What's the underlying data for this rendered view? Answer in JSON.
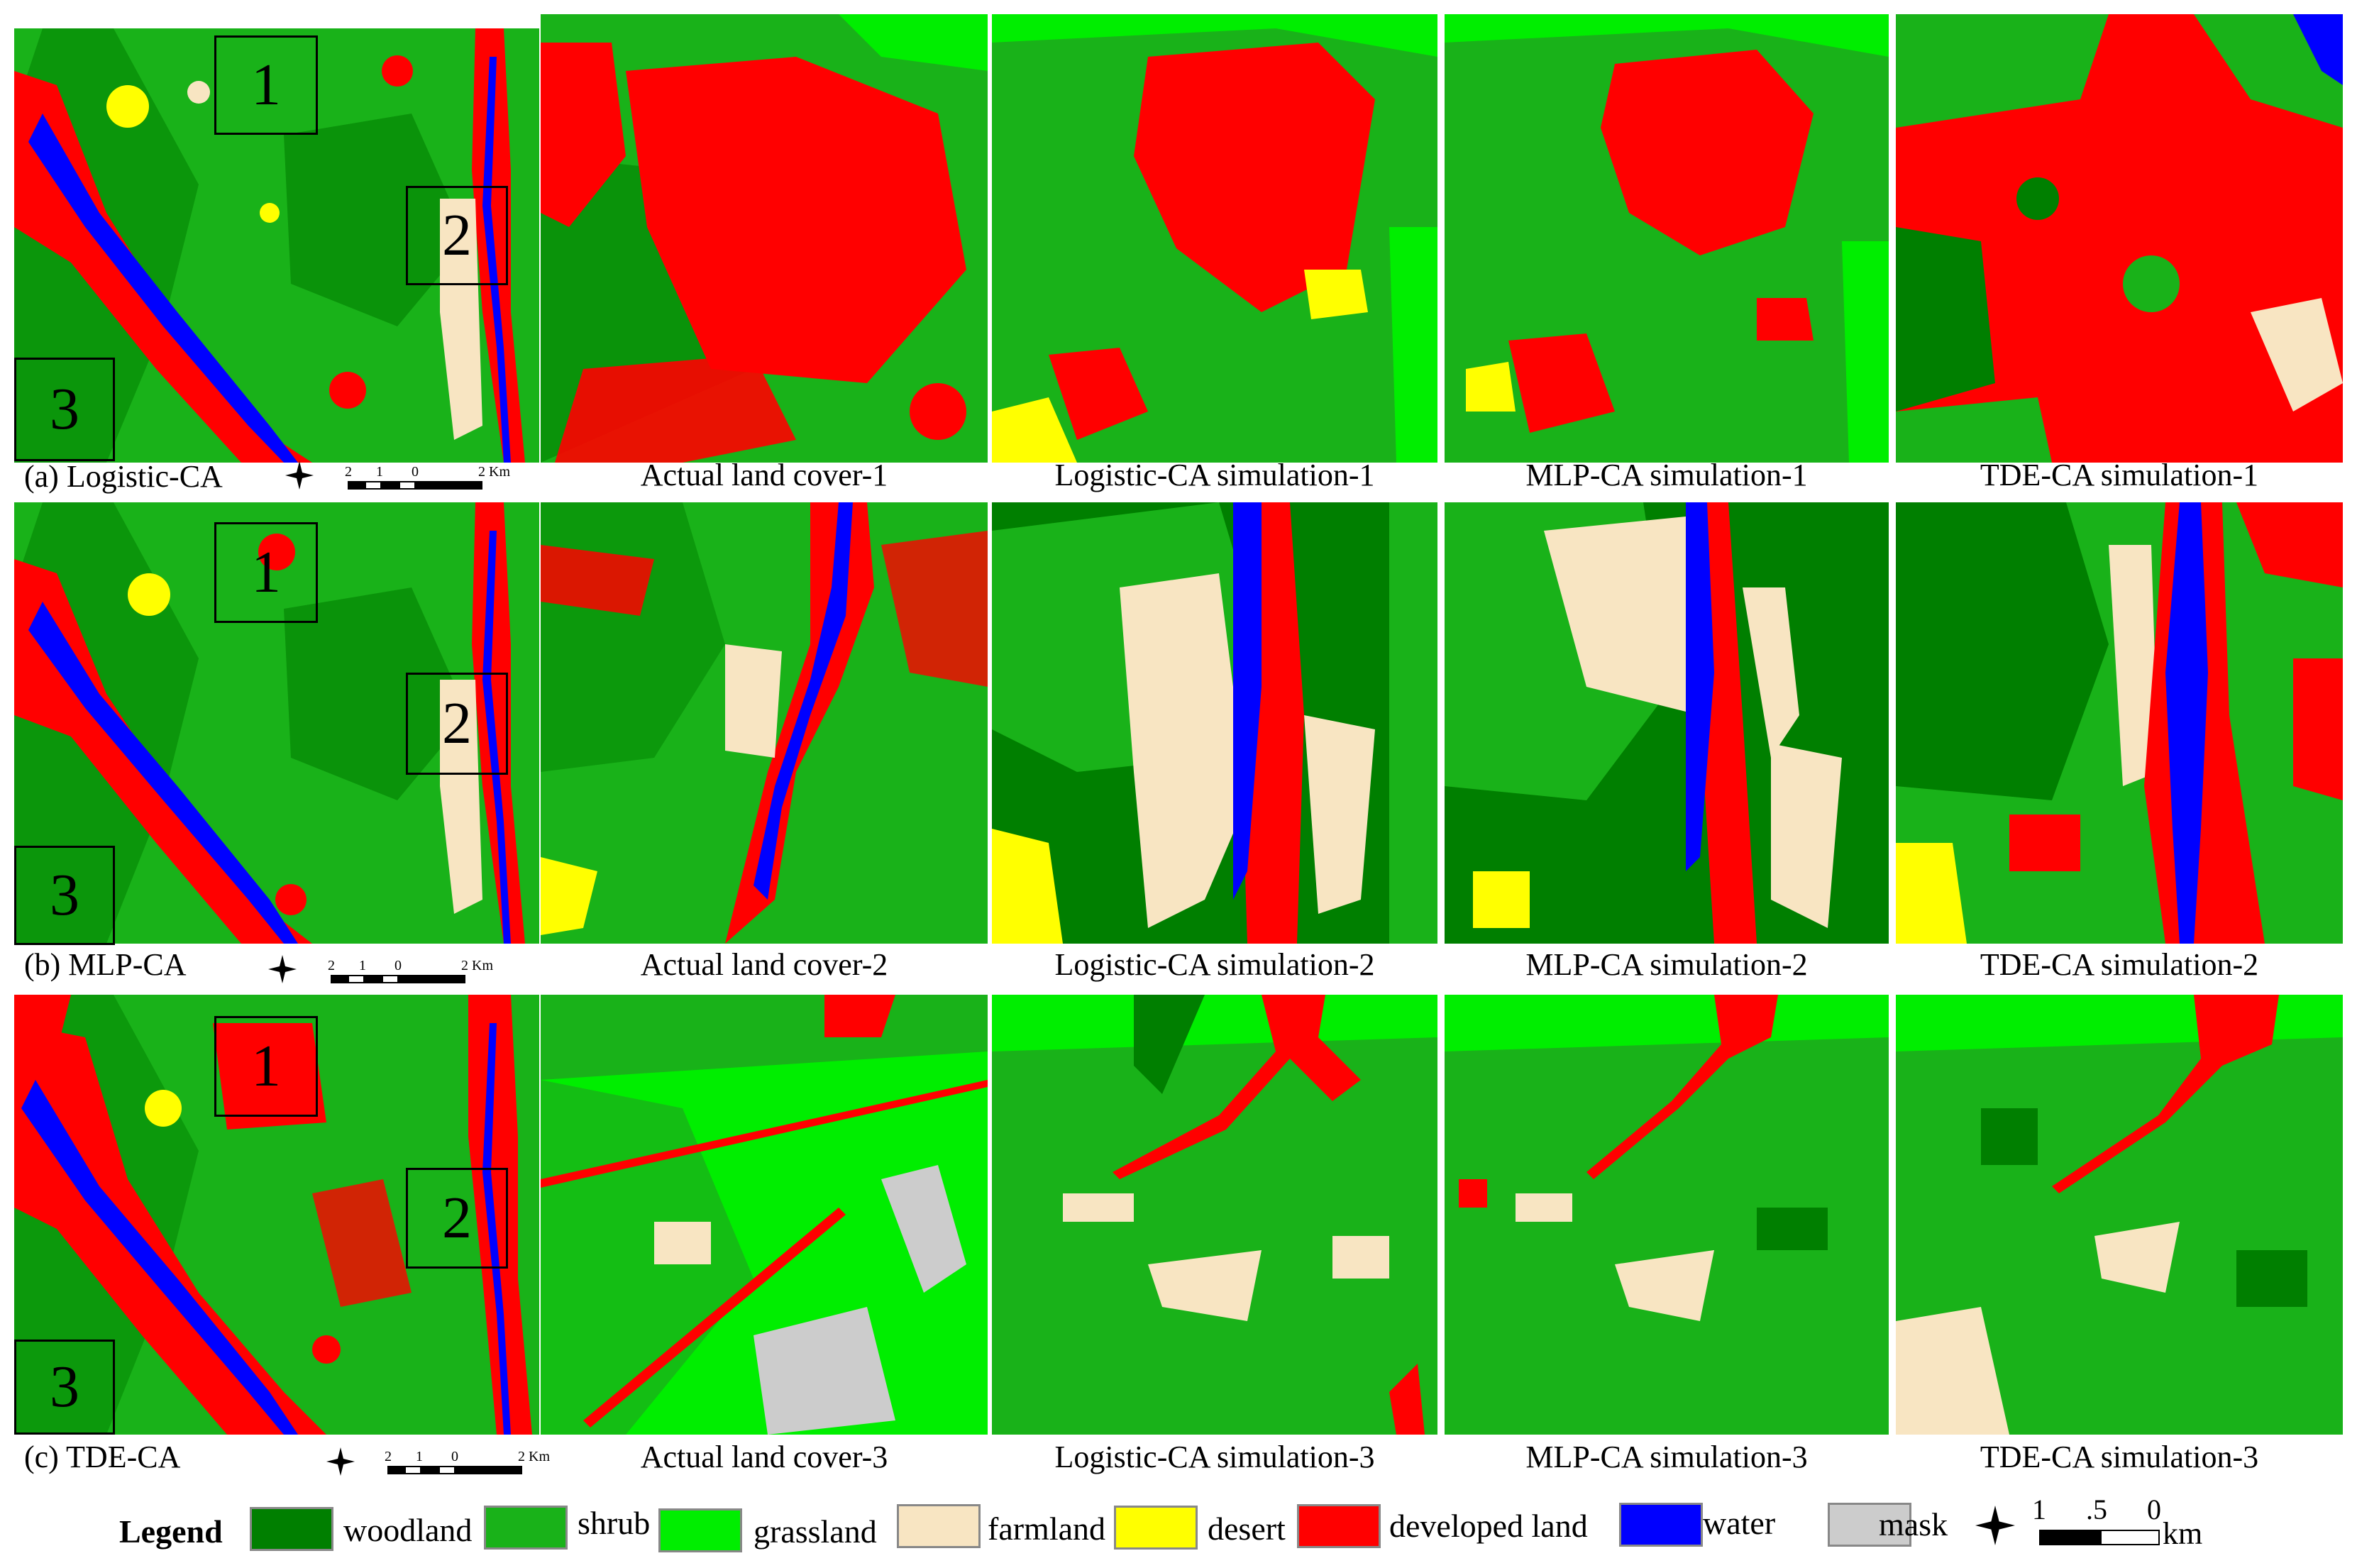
{
  "legend": {
    "title": "Legend",
    "items": [
      {
        "label": "woodland",
        "color": "#007f00"
      },
      {
        "label": "shrub",
        "color": "#19b219"
      },
      {
        "label": "grassland",
        "color": "#00ee00"
      },
      {
        "label": "farmland",
        "color": "#f8e5c2"
      },
      {
        "label": "desert",
        "color": "#ffff00"
      },
      {
        "label": "developed land",
        "color": "#ff0000"
      },
      {
        "label": "water",
        "color": "#0000ff"
      },
      {
        "label": "mask",
        "color": "#cccccc"
      }
    ],
    "scale_labels": [
      "1",
      ".5",
      "0"
    ],
    "scale_unit": "km"
  },
  "rows": [
    {
      "overview_caption": "(a) Logistic-CA",
      "scale_labels": [
        "2",
        "1",
        "0",
        "2 Km"
      ],
      "north_label": "N",
      "box_labels": [
        "1",
        "2",
        "3"
      ],
      "captions": [
        "Actual land cover-1",
        "Logistic-CA simulation-1",
        "MLP-CA simulation-1",
        "TDE-CA simulation-1"
      ]
    },
    {
      "overview_caption": "(b) MLP-CA",
      "scale_labels": [
        "2",
        "1",
        "0",
        "2 Km"
      ],
      "north_label": "N",
      "box_labels": [
        "1",
        "2",
        "3"
      ],
      "captions": [
        "Actual land cover-2",
        "Logistic-CA simulation-2",
        "MLP-CA simulation-2",
        "TDE-CA simulation-2"
      ]
    },
    {
      "overview_caption": "(c) TDE-CA",
      "scale_labels": [
        "2",
        "1",
        "0",
        "2 Km"
      ],
      "north_label": "N",
      "box_labels": [
        "1",
        "2",
        "3"
      ],
      "captions": [
        "Actual land cover-3",
        "Logistic-CA simulation-3",
        "MLP-CA simulation-3",
        "TDE-CA simulation-3"
      ]
    }
  ]
}
